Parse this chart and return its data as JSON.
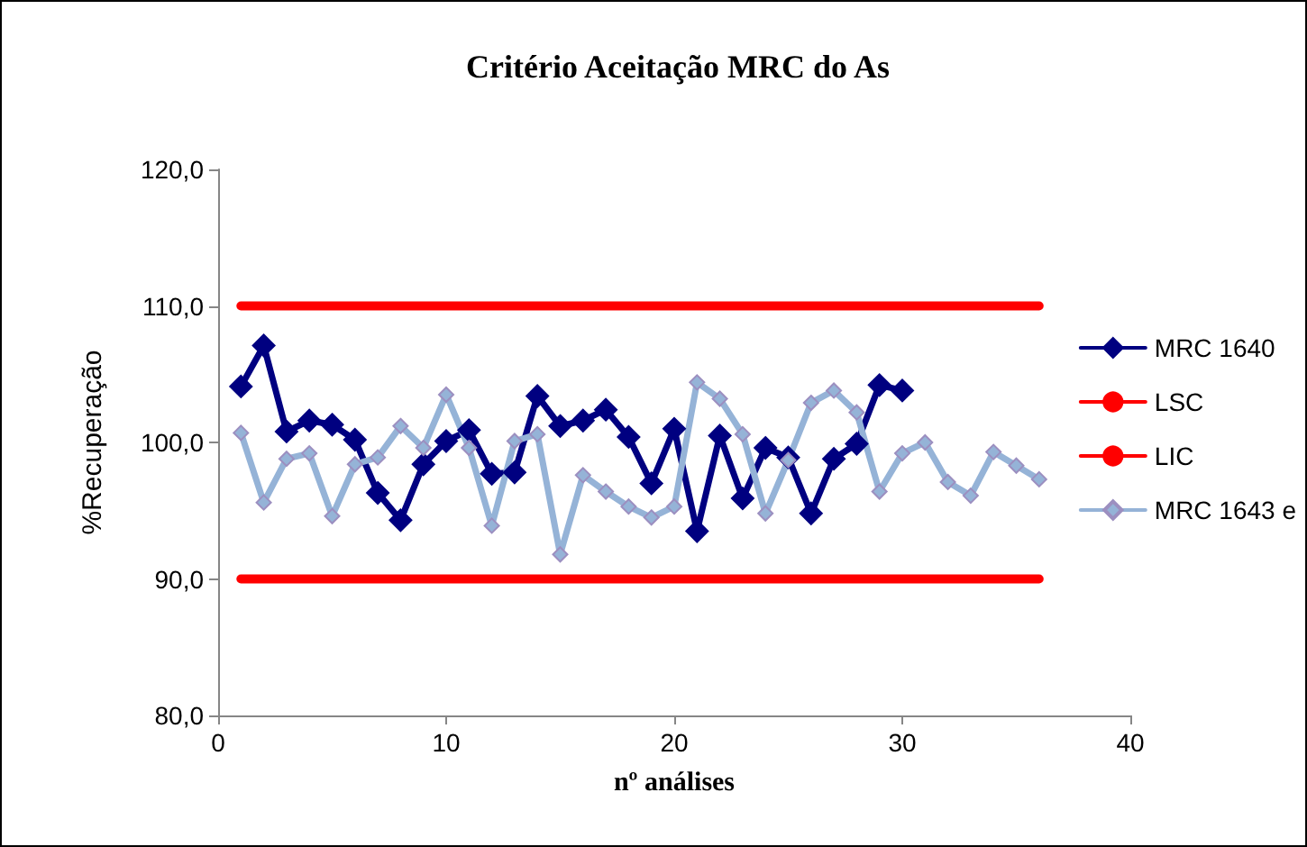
{
  "chart_data": {
    "type": "line",
    "title": "Critério Aceitação MRC do As",
    "xlabel": "nº análises",
    "ylabel": "%Recuperação",
    "xlim": [
      0,
      40
    ],
    "xticks": [
      0,
      10,
      20,
      30,
      40
    ],
    "ylim": [
      80,
      120
    ],
    "yticks": [
      {
        "value": 80,
        "label": "80,0"
      },
      {
        "value": 90,
        "label": "90,0"
      },
      {
        "value": 100,
        "label": "100,0"
      },
      {
        "value": 110,
        "label": "110,0"
      },
      {
        "value": 120,
        "label": "120,0"
      }
    ],
    "grid": false,
    "legend": "right",
    "marker": "diamond",
    "line_style": "solid",
    "series": [
      {
        "name": "MRC 1640",
        "color": "#000080",
        "x": [
          1,
          2,
          3,
          4,
          5,
          6,
          7,
          8,
          9,
          10,
          11,
          12,
          13,
          14,
          15,
          16,
          17,
          18,
          19,
          20,
          21,
          22,
          23,
          24,
          25,
          26,
          27,
          28,
          29,
          30
        ],
        "values": [
          104.1,
          107.1,
          100.8,
          101.6,
          101.3,
          100.2,
          96.3,
          94.3,
          98.4,
          100.1,
          100.9,
          97.7,
          97.8,
          103.4,
          101.2,
          101.6,
          102.4,
          100.4,
          97.0,
          101.0,
          93.5,
          100.5,
          95.9,
          99.6,
          98.9,
          94.8,
          98.8,
          99.9,
          104.2,
          103.8
        ]
      },
      {
        "name": "LSC",
        "color": "#ff0000",
        "marker": "none",
        "x": [
          1,
          36
        ],
        "values": [
          110,
          110
        ]
      },
      {
        "name": "LIC",
        "color": "#ff0000",
        "marker": "none",
        "x": [
          1,
          36
        ],
        "values": [
          90,
          90
        ]
      },
      {
        "name": "MRC 1643 e",
        "color": "#95b3d7",
        "x": [
          1,
          2,
          3,
          4,
          5,
          6,
          7,
          8,
          9,
          10,
          11,
          12,
          13,
          14,
          15,
          16,
          17,
          18,
          19,
          20,
          21,
          22,
          23,
          24,
          25,
          26,
          27,
          28,
          29,
          30,
          31,
          32,
          33,
          34,
          35,
          36
        ],
        "values": [
          100.7,
          95.6,
          98.8,
          99.2,
          94.6,
          98.4,
          98.9,
          101.2,
          99.6,
          103.5,
          99.6,
          93.9,
          100.1,
          100.6,
          91.8,
          97.6,
          96.4,
          95.3,
          94.5,
          95.3,
          104.4,
          103.2,
          100.6,
          94.8,
          98.7,
          102.9,
          103.8,
          102.2,
          96.4,
          99.2,
          100.0,
          97.1,
          96.1,
          99.3,
          98.3,
          97.3
        ]
      }
    ]
  }
}
